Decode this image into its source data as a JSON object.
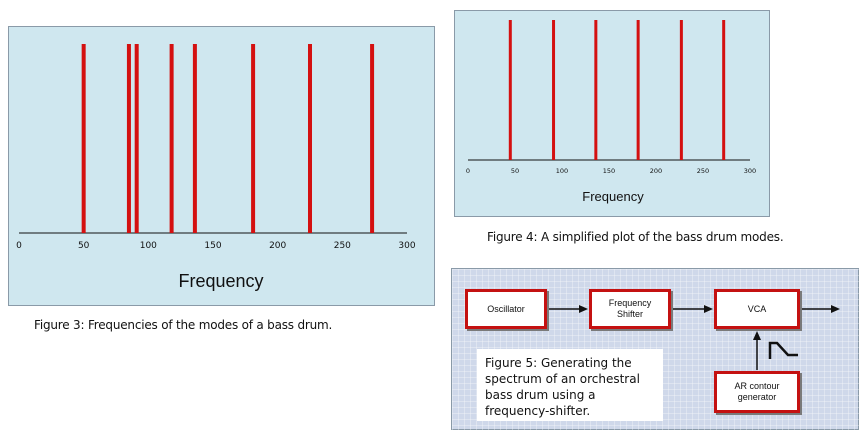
{
  "chart_data": [
    {
      "type": "bar",
      "id": "figure-3",
      "title": "",
      "values": [
        50,
        85,
        91,
        118,
        136,
        181,
        225,
        273
      ],
      "xlabel": "Frequency",
      "ylabel": "",
      "xlim": [
        0,
        300
      ],
      "x_ticks": [
        "0",
        "50",
        "100",
        "150",
        "200",
        "250",
        "300"
      ],
      "grid": false,
      "caption": "Figure 3: Frequencies of the modes of a bass drum."
    },
    {
      "type": "bar",
      "id": "figure-4",
      "title": "",
      "values": [
        45,
        91,
        136,
        181,
        227,
        272
      ],
      "xlabel": "Frequency",
      "ylabel": "",
      "xlim": [
        0,
        300
      ],
      "x_ticks": [
        "0",
        "50",
        "100",
        "150",
        "200",
        "250",
        "300"
      ],
      "grid": false,
      "caption": "Figure 4: A simplified plot of the bass drum modes."
    }
  ],
  "figure5": {
    "boxes": {
      "oscillator": "Oscillator",
      "freq_shifter": "Frequency\nShifter",
      "vca": "VCA",
      "ar": "AR contour\ngenerator"
    },
    "caption": "Figure 5: Generating the spectrum of an orchestral bass drum using a frequency-shifter."
  },
  "colors": {
    "line": "#d41010",
    "panel_bg": "#cfe7ef",
    "grid_bg": "#cfd8ea",
    "box_border": "#c41111"
  }
}
